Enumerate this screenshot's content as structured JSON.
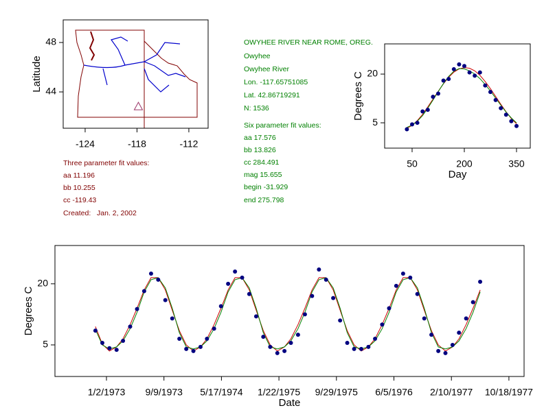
{
  "info": {
    "site": [
      "OWYHEE RIVER NEAR ROME, OREG.",
      "Owyhee",
      "Owyhee River",
      "Lon. -117.65751085",
      "Lat. 42.86719291",
      "N: 1536"
    ],
    "six_param": [
      "Six parameter fit values:",
      "aa 17.576",
      "bb 13.826",
      "cc 284.491",
      "mag 15.655",
      "begin -31.929",
      "end 275.798"
    ],
    "three_param": [
      "Three parameter fit values:",
      "aa 11.196",
      "bb 10.255",
      "cc -119.43",
      "Created:   Jan. 2, 2002"
    ]
  },
  "chart_data": [
    {
      "type": "map",
      "ylabel": "Latitude",
      "xlim": [
        -126.54,
        -109.77
      ],
      "ylim": [
        41.06,
        49.83
      ],
      "xticks": [
        -124,
        -118,
        -112
      ],
      "yticks": [
        44,
        48
      ],
      "marker": {
        "x": -117.84,
        "y": 42.83,
        "color": "#993366"
      }
    },
    {
      "type": "scatter",
      "xlabel": "Day",
      "ylabel": "Degrees C",
      "xlim": [
        -28.9,
        389.5
      ],
      "ylim": [
        -2.8,
        29.3
      ],
      "xticks": [
        50,
        200,
        350
      ],
      "yticks": [
        5,
        20
      ],
      "x": [
        35,
        50,
        65,
        80,
        95,
        110,
        125,
        140,
        155,
        170,
        185,
        200,
        215,
        230,
        245,
        260,
        275,
        290,
        305,
        320,
        335,
        350
      ],
      "series": [
        {
          "kind": "points",
          "color": "#000080",
          "values": [
            3.0,
            4.5,
            5.0,
            8.5,
            9.0,
            13.0,
            14.0,
            18.0,
            18.5,
            21.5,
            23.0,
            22.5,
            20.5,
            19.5,
            20.5,
            16.5,
            14.5,
            12.0,
            9.5,
            7.5,
            5.5,
            4.0
          ]
        },
        {
          "kind": "line",
          "color": "#cc0000",
          "values": [
            3.3,
            4.2,
            5.7,
            7.6,
            9.9,
            12.3,
            14.7,
            17.0,
            19.0,
            20.6,
            21.6,
            22.0,
            21.8,
            21.0,
            19.6,
            17.7,
            15.5,
            13.1,
            10.7,
            8.4,
            6.3,
            4.7
          ]
        },
        {
          "kind": "line",
          "color": "#008000",
          "values": [
            3.6,
            4.3,
            5.5,
            7.2,
            9.5,
            12.0,
            14.6,
            17.1,
            19.3,
            20.9,
            21.7,
            21.6,
            21.0,
            20.0,
            18.6,
            16.8,
            14.8,
            12.6,
            10.4,
            8.3,
            6.5,
            5.0
          ]
        }
      ]
    },
    {
      "type": "scatter",
      "xlabel": "Date",
      "ylabel": "Degrees C",
      "xlim": [
        "1972-05-23",
        "1977-12-23"
      ],
      "ylim": [
        -2.75,
        29.4
      ],
      "xticks": [
        "1/2/1973",
        "9/9/1973",
        "5/17/1974",
        "1/22/1975",
        "9/29/1975",
        "6/5/1976",
        "2/10/1977",
        "10/18/1977"
      ],
      "yticks": [
        5,
        20
      ],
      "x": [
        "1972-11-15",
        "1972-12-15",
        "1973-01-15",
        "1973-02-15",
        "1973-03-15",
        "1973-04-15",
        "1973-05-15",
        "1973-06-15",
        "1973-07-15",
        "1973-08-15",
        "1973-09-15",
        "1973-10-15",
        "1973-11-15",
        "1973-12-15",
        "1974-01-15",
        "1974-02-15",
        "1974-03-15",
        "1974-04-15",
        "1974-05-15",
        "1974-06-15",
        "1974-07-15",
        "1974-08-15",
        "1974-09-15",
        "1974-10-15",
        "1974-11-15",
        "1974-12-15",
        "1975-01-15",
        "1975-02-15",
        "1975-03-15",
        "1975-04-15",
        "1975-05-15",
        "1975-06-15",
        "1975-07-15",
        "1975-08-15",
        "1975-09-15",
        "1975-10-15",
        "1975-11-15",
        "1975-12-15",
        "1976-01-15",
        "1976-02-15",
        "1976-03-15",
        "1976-04-15",
        "1976-05-15",
        "1976-06-15",
        "1976-07-15",
        "1976-08-15",
        "1976-09-15",
        "1976-10-15",
        "1976-11-15",
        "1976-12-15",
        "1977-01-15",
        "1977-02-15",
        "1977-03-15",
        "1977-04-15",
        "1977-05-15",
        "1977-06-15"
      ],
      "series": [
        {
          "kind": "points",
          "color": "#000080",
          "values": [
            8.5,
            5.5,
            4.2,
            3.8,
            6.0,
            9.5,
            13.8,
            18.2,
            22.5,
            21.0,
            16.0,
            11.5,
            6.5,
            4.0,
            3.5,
            4.5,
            6.5,
            9.0,
            14.5,
            20.0,
            23.0,
            21.5,
            17.5,
            12.0,
            7.0,
            4.5,
            3.0,
            3.5,
            5.5,
            7.5,
            12.5,
            17.0,
            23.5,
            21.0,
            16.5,
            11.0,
            5.5,
            4.0,
            4.0,
            4.5,
            6.5,
            10.0,
            14.0,
            19.5,
            22.5,
            21.5,
            17.5,
            11.5,
            7.5,
            3.5,
            3.0,
            5.0,
            8.0,
            11.5,
            15.5,
            20.5
          ]
        },
        {
          "kind": "line",
          "color": "#cc0000",
          "values": [
            9.5,
            5.2,
            3.5,
            4.5,
            6.5,
            10.0,
            14.0,
            18.5,
            21.5,
            21.5,
            18.5,
            13.5,
            8.5,
            5.0,
            3.5,
            4.5,
            6.5,
            10.0,
            14.0,
            18.5,
            21.5,
            21.5,
            18.5,
            13.5,
            8.5,
            5.0,
            3.5,
            4.5,
            6.5,
            10.0,
            14.0,
            18.5,
            21.5,
            21.5,
            18.5,
            13.5,
            8.5,
            5.0,
            3.5,
            4.5,
            6.5,
            10.0,
            14.0,
            18.5,
            21.5,
            21.5,
            18.5,
            13.5,
            8.5,
            5.0,
            3.5,
            4.5,
            6.5,
            10.0,
            14.0,
            18.5
          ]
        },
        {
          "kind": "line",
          "color": "#008000",
          "values": [
            8.8,
            5.0,
            4.0,
            4.5,
            6.0,
            9.0,
            13.0,
            18.0,
            21.0,
            21.5,
            19.0,
            14.0,
            8.0,
            4.5,
            4.0,
            4.5,
            6.0,
            9.0,
            13.0,
            18.0,
            21.0,
            21.5,
            19.0,
            14.0,
            8.0,
            4.5,
            4.0,
            4.5,
            6.0,
            9.0,
            13.0,
            18.0,
            21.0,
            21.5,
            19.0,
            14.0,
            8.0,
            4.5,
            4.0,
            4.5,
            6.0,
            9.0,
            13.0,
            18.0,
            21.0,
            21.5,
            19.0,
            14.0,
            8.0,
            4.5,
            4.0,
            4.5,
            6.0,
            9.0,
            13.0,
            18.0
          ]
        }
      ]
    }
  ]
}
